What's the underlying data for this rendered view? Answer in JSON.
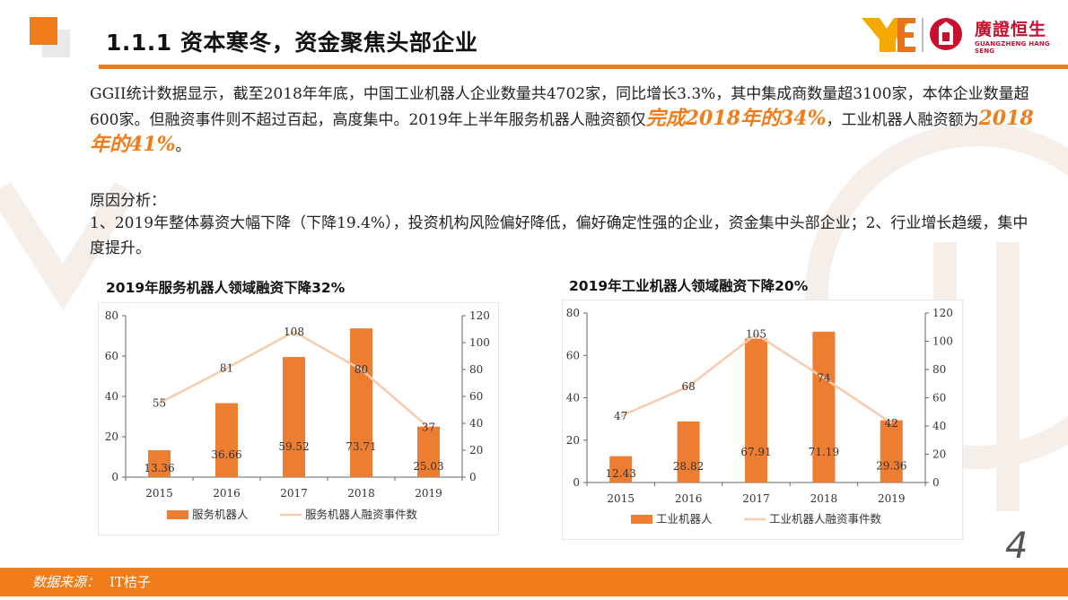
{
  "header": {
    "title": "1.1.1 资本寒冬，资金聚焦头部企业",
    "brand_name": "廣證恒生",
    "brand_sub": "GUANGZHENG HANG SENG",
    "colors": {
      "accent": "#f07d1a",
      "brand": "#c8102e"
    }
  },
  "intro": {
    "part1": "GGII统计数据显示，截至2018年年底，中国工业机器人企业数量共4702家，同比增长3.3%，其中集成商数量超3100家，本体企业数量超600家。但融资事件则不超过百起，高度集中。2019年上半年服务机器人融资额仅",
    "highlight1": "完成2018年的34%",
    "part2": "，工业机器人融资额为",
    "highlight2": "2018年的41%",
    "part3": "。"
  },
  "reasons": {
    "title": "原因分析：",
    "body": "1、2019年整体募资大幅下降（下降19.4%），投资机构风险偏好降低，偏好确定性强的企业，资金集中头部企业；2、行业增长趋缓，集中度提升。"
  },
  "charts": {
    "left_title": "2019年服务机器人领域融资下降32%",
    "right_title": "2019年工业机器人领域融资下降20%"
  },
  "chart_data": [
    {
      "type": "bar",
      "title": "2019年服务机器人领域融资下降32%",
      "categories": [
        "2015",
        "2016",
        "2017",
        "2018",
        "2019"
      ],
      "series": [
        {
          "name": "服务机器人",
          "type": "bar",
          "axis": "left",
          "color": "#ed7d31",
          "values": [
            13.36,
            36.66,
            59.52,
            73.71,
            25.03
          ],
          "labels": [
            "13.36",
            "36.66",
            "59.52",
            "73.71",
            "25.03"
          ]
        },
        {
          "name": "服务机器人融资事件数",
          "type": "line",
          "axis": "right",
          "color": "#f8cbad",
          "values": [
            55,
            81,
            108,
            80,
            37
          ],
          "labels": [
            "55",
            "81",
            "108",
            "80",
            "37"
          ]
        }
      ],
      "ylim_left": [
        0,
        80
      ],
      "yticks_left": [
        "0",
        "20",
        "40",
        "60",
        "80"
      ],
      "ylim_right": [
        0,
        120
      ],
      "yticks_right": [
        "0",
        "20",
        "40",
        "60",
        "80",
        "100",
        "120"
      ],
      "grid": false,
      "legend": "bottom"
    },
    {
      "type": "bar",
      "title": "2019年工业机器人领域融资下降20%",
      "categories": [
        "2015",
        "2016",
        "2017",
        "2018",
        "2019"
      ],
      "series": [
        {
          "name": "工业机器人",
          "type": "bar",
          "axis": "left",
          "color": "#ed7d31",
          "values": [
            12.43,
            28.82,
            67.91,
            71.19,
            29.36
          ],
          "labels": [
            "12.43",
            "28.82",
            "67.91",
            "71.19",
            "29.36"
          ]
        },
        {
          "name": "工业机器人融资事件数",
          "type": "line",
          "axis": "right",
          "color": "#f8cbad",
          "values": [
            47,
            68,
            105,
            74,
            42
          ],
          "labels": [
            "47",
            "68",
            "105",
            "74",
            "42"
          ]
        }
      ],
      "ylim_left": [
        0,
        80
      ],
      "yticks_left": [
        "0",
        "20",
        "40",
        "60",
        "80"
      ],
      "ylim_right": [
        0,
        120
      ],
      "yticks_right": [
        "0",
        "20",
        "40",
        "60",
        "80",
        "100",
        "120"
      ],
      "grid": false,
      "legend": "bottom"
    }
  ],
  "footer": {
    "source_label": "数据来源：",
    "source_value": "IT桔子",
    "page_number": "4"
  }
}
